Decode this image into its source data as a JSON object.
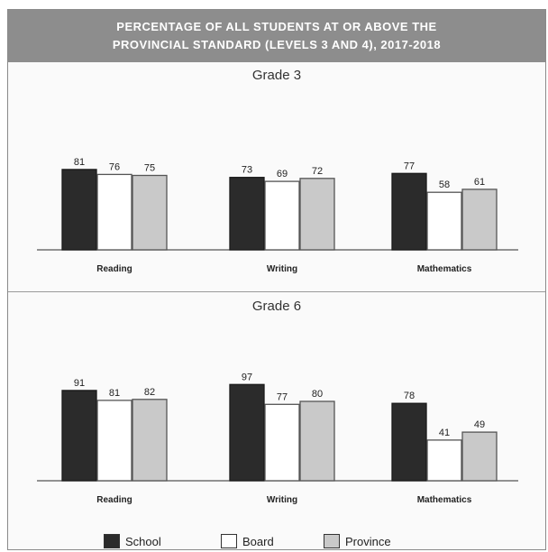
{
  "header": {
    "line1": "PERCENTAGE OF ALL STUDENTS AT OR ABOVE THE",
    "line2": "PROVINCIAL STANDARD (LEVELS 3 AND 4), 2017-2018"
  },
  "colors": {
    "school": "#2b2b2b",
    "board": "#ffffff",
    "province": "#c9c9c9"
  },
  "legend": [
    {
      "label": "School",
      "color": "#2b2b2b"
    },
    {
      "label": "Board",
      "color": "#ffffff"
    },
    {
      "label": "Province",
      "color": "#c9c9c9"
    }
  ],
  "chart_data": [
    {
      "type": "bar",
      "title": "Grade 3",
      "categories": [
        "Reading",
        "Writing",
        "Mathematics"
      ],
      "series": [
        {
          "name": "School",
          "values": [
            81,
            73,
            77
          ]
        },
        {
          "name": "Board",
          "values": [
            76,
            69,
            58
          ]
        },
        {
          "name": "Province",
          "values": [
            75,
            72,
            61
          ]
        }
      ],
      "ylim": [
        0,
        100
      ],
      "grid": false,
      "legend_position": "bottom"
    },
    {
      "type": "bar",
      "title": "Grade 6",
      "categories": [
        "Reading",
        "Writing",
        "Mathematics"
      ],
      "series": [
        {
          "name": "School",
          "values": [
            91,
            97,
            78
          ]
        },
        {
          "name": "Board",
          "values": [
            81,
            77,
            41
          ]
        },
        {
          "name": "Province",
          "values": [
            82,
            80,
            49
          ]
        }
      ],
      "ylim": [
        0,
        100
      ],
      "grid": false,
      "legend_position": "bottom"
    }
  ]
}
